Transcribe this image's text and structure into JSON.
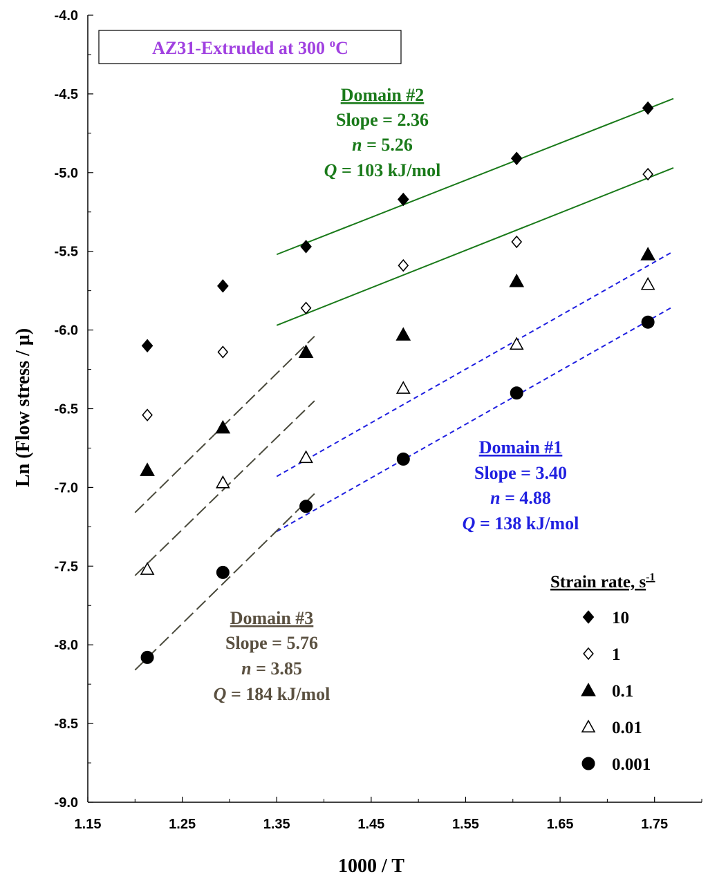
{
  "chart_data": {
    "type": "scatter",
    "title": "AZ31-Extruded at 300 °C",
    "title_parts": [
      "AZ31-Extruded at 300 ",
      "o",
      "C"
    ],
    "xlabel": "1000 / T",
    "ylabel": "Ln (Flow stress / μ)",
    "xlim": [
      1.15,
      1.8
    ],
    "ylim": [
      -9.0,
      -4.0
    ],
    "x_ticks": [
      "1.15",
      "1.25",
      "1.35",
      "1.45",
      "1.55",
      "1.65",
      "1.75"
    ],
    "y_ticks": [
      "-4.0",
      "-4.5",
      "-5.0",
      "-5.5",
      "-6.0",
      "-6.5",
      "-7.0",
      "-7.5",
      "-8.0",
      "-8.5",
      "-9.0"
    ],
    "grid": false,
    "legend_position": "bottom-right",
    "legend_title": "Strain rate, s",
    "legend_title_sup": "-1",
    "x": [
      1.213,
      1.293,
      1.381,
      1.484,
      1.604,
      1.743
    ],
    "series": [
      {
        "name": "10",
        "marker": "diamond-filled",
        "values": [
          -6.1,
          -5.72,
          -5.47,
          -5.17,
          -4.91,
          -4.59
        ]
      },
      {
        "name": "1",
        "marker": "diamond-open",
        "values": [
          -6.54,
          -6.14,
          -5.86,
          -5.59,
          -5.44,
          -5.01
        ]
      },
      {
        "name": "0.1",
        "marker": "triangle-filled",
        "values": [
          -6.89,
          -6.62,
          -6.14,
          -6.03,
          -5.69,
          -5.52
        ]
      },
      {
        "name": "0.01",
        "marker": "triangle-open",
        "values": [
          -7.52,
          -6.97,
          -6.81,
          -6.37,
          -6.09,
          -5.71
        ]
      },
      {
        "name": "0.001",
        "marker": "circle-filled",
        "values": [
          -8.08,
          -7.54,
          -7.12,
          -6.82,
          -6.4,
          -5.95
        ]
      }
    ],
    "fit_lines": [
      {
        "domain": "Domain #2",
        "style": "solid",
        "color": "#1a7a1a",
        "from": [
          1.35,
          -5.52
        ],
        "to": [
          1.77,
          -4.53
        ]
      },
      {
        "domain": "Domain #2",
        "style": "solid",
        "color": "#1a7a1a",
        "from": [
          1.35,
          -5.97
        ],
        "to": [
          1.77,
          -4.97
        ]
      },
      {
        "domain": "Domain #1",
        "style": "dashed",
        "color": "#1f1fe0",
        "from": [
          1.35,
          -6.93
        ],
        "to": [
          1.77,
          -5.5
        ]
      },
      {
        "domain": "Domain #1",
        "style": "dashed",
        "color": "#1f1fe0",
        "from": [
          1.35,
          -7.28
        ],
        "to": [
          1.77,
          -5.85
        ]
      },
      {
        "domain": "Domain #3",
        "style": "longdash",
        "color": "#4a4a3c",
        "from": [
          1.2,
          -7.16
        ],
        "to": [
          1.39,
          -6.04
        ]
      },
      {
        "domain": "Domain #3",
        "style": "longdash",
        "color": "#4a4a3c",
        "from": [
          1.2,
          -7.56
        ],
        "to": [
          1.39,
          -6.45
        ]
      },
      {
        "domain": "Domain #3",
        "style": "longdash",
        "color": "#4a4a3c",
        "from": [
          1.2,
          -8.16
        ],
        "to": [
          1.39,
          -7.04
        ]
      }
    ],
    "annotations": [
      {
        "id": "domain2",
        "color": "#1a7a1a",
        "title": "Domain #2",
        "slope": "Slope = 2.36",
        "n_label": "n",
        "n_value": " = 5.26",
        "q_label": "Q",
        "q_value": " = 103 kJ/mol"
      },
      {
        "id": "domain1",
        "color": "#1f1fe0",
        "title": "Domain #1",
        "slope": "Slope = 3.40",
        "n_label": "n",
        "n_value": " = 4.88",
        "q_label": "Q",
        "q_value": " = 138 kJ/mol"
      },
      {
        "id": "domain3",
        "color": "#5a5040",
        "title": "Domain #3",
        "slope": "Slope = 5.76",
        "n_label": "n",
        "n_value": " = 3.85",
        "q_label": "Q",
        "q_value": " = 184 kJ/mol"
      }
    ],
    "colors": {
      "title": "#a040e0",
      "domain2": "#1a7a1a",
      "domain1": "#1f1fe0",
      "domain3": "#5a5040"
    }
  }
}
